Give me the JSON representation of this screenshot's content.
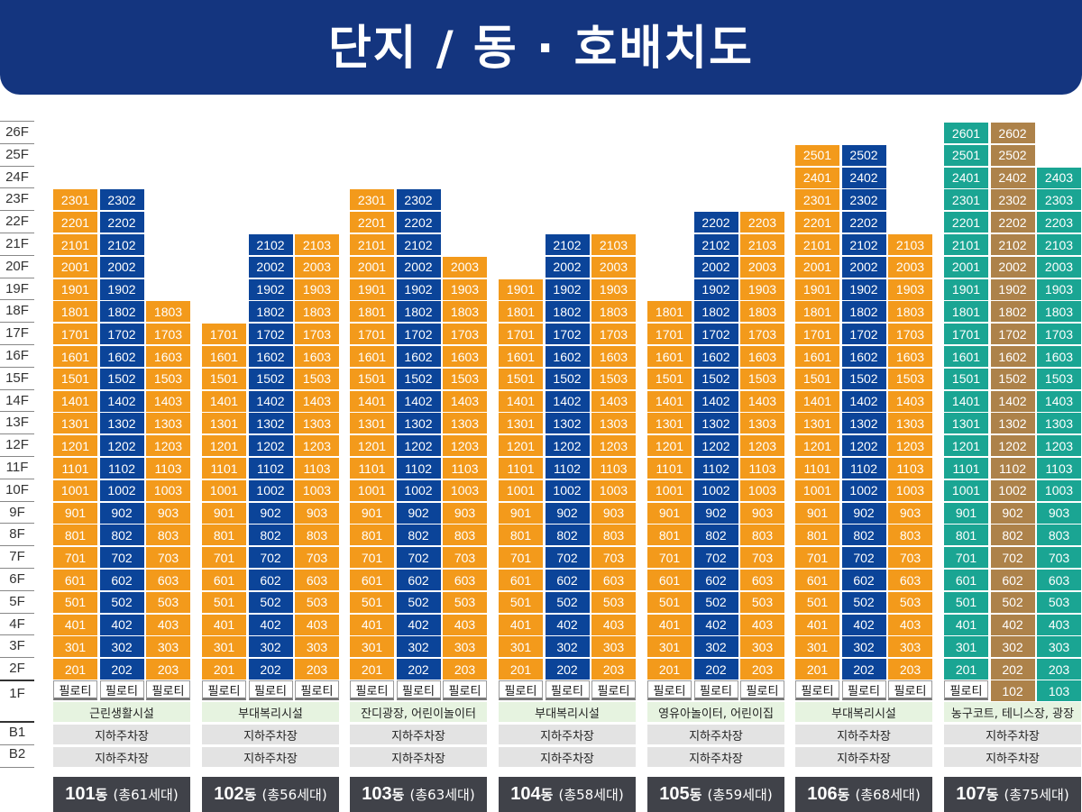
{
  "title": "단지 / 동 · 호배치도",
  "colors": {
    "title_bg": "#14357f",
    "orange": "#f39a1b",
    "blue": "#0b4499",
    "teal": "#1aa593",
    "brown": "#ad824a",
    "amenity_bg": "#e6f3e0",
    "parking_bg": "#e3e3e3",
    "label_bg": "#404249"
  },
  "floors": [
    "26F",
    "25F",
    "24F",
    "23F",
    "22F",
    "21F",
    "20F",
    "19F",
    "18F",
    "17F",
    "16F",
    "15F",
    "14F",
    "13F",
    "12F",
    "11F",
    "10F",
    "9F",
    "8F",
    "7F",
    "6F",
    "5F",
    "4F",
    "3F",
    "2F",
    "1F",
    "B1",
    "B2"
  ],
  "buildings": [
    {
      "number": "101",
      "suffix": "동",
      "total": "(총61세대)",
      "line_colors": [
        "orange",
        "blue",
        "orange"
      ],
      "top_floors": [
        23,
        23,
        18
      ],
      "ground": [
        "필로티",
        "필로티",
        "필로티"
      ],
      "amenity": "근린생활시설",
      "b1": "지하주차장",
      "b2": "지하주차장"
    },
    {
      "number": "102",
      "suffix": "동",
      "total": "(총56세대)",
      "line_colors": [
        "orange",
        "blue",
        "orange"
      ],
      "top_floors": [
        17,
        21,
        21
      ],
      "ground": [
        "필로티",
        "필로티",
        "필로티"
      ],
      "amenity": "부대복리시설",
      "b1": "지하주차장",
      "b2": "지하주차장"
    },
    {
      "number": "103",
      "suffix": "동",
      "total": "(총63세대)",
      "line_colors": [
        "orange",
        "blue",
        "orange"
      ],
      "top_floors": [
        23,
        23,
        20
      ],
      "ground": [
        "필로티",
        "필로티",
        "필로티"
      ],
      "amenity": "잔디광장, 어린이놀이터",
      "b1": "지하주차장",
      "b2": "지하주차장"
    },
    {
      "number": "104",
      "suffix": "동",
      "total": "(총58세대)",
      "line_colors": [
        "orange",
        "blue",
        "orange"
      ],
      "top_floors": [
        19,
        21,
        21
      ],
      "ground": [
        "필로티",
        "필로티",
        "필로티"
      ],
      "amenity": "부대복리시설",
      "b1": "지하주차장",
      "b2": "지하주차장"
    },
    {
      "number": "105",
      "suffix": "동",
      "total": "(총59세대)",
      "line_colors": [
        "orange",
        "blue",
        "orange"
      ],
      "top_floors": [
        18,
        22,
        22
      ],
      "ground": [
        "필로티",
        "필로티",
        "필로티"
      ],
      "amenity": "영유아놀이터, 어린이집",
      "b1": "지하주차장",
      "b2": "지하주차장"
    },
    {
      "number": "106",
      "suffix": "동",
      "total": "(총68세대)",
      "line_colors": [
        "orange",
        "blue",
        "orange"
      ],
      "top_floors": [
        25,
        25,
        21
      ],
      "ground": [
        "필로티",
        "필로티",
        "필로티"
      ],
      "amenity": "부대복리시설",
      "b1": "지하주차장",
      "b2": "지하주차장"
    },
    {
      "number": "107",
      "suffix": "동",
      "total": "(총75세대)",
      "line_colors": [
        "teal",
        "brown",
        "teal"
      ],
      "top_floors": [
        26,
        26,
        24
      ],
      "ground": [
        "필로티",
        "102",
        "103"
      ],
      "amenity": "농구코트, 테니스장, 광장",
      "b1": "지하주차장",
      "b2": "지하주차장"
    }
  ]
}
